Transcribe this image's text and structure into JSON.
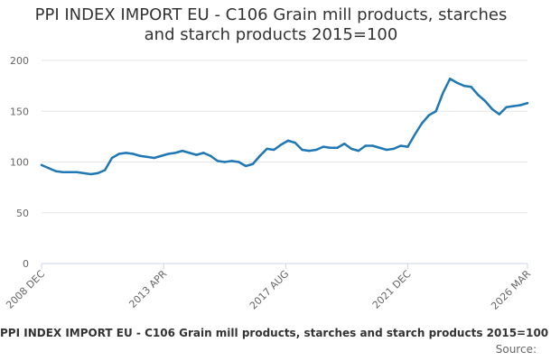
{
  "title_lines": [
    "PPI INDEX IMPORT EU - C106 Grain mill products, starches",
    "and starch products 2015=100"
  ],
  "footer": {
    "title": "PPI INDEX IMPORT EU - C106 Grain mill products, starches and starch products 2015=100",
    "source": "Source:"
  },
  "colors": {
    "line": "#1f78b4",
    "grid": "#e6e6e6",
    "axis": "#ccd6eb"
  },
  "chart_data": {
    "type": "line",
    "title": "PPI INDEX IMPORT EU - C106 Grain mill products, starches and starch products 2015=100",
    "xlabel": "",
    "ylabel": "",
    "ylim": [
      0,
      200
    ],
    "yticks": [
      0,
      50,
      100,
      150,
      200
    ],
    "xticks": [
      "2008 DEC",
      "2013 APR",
      "2017 AUG",
      "2021 DEC",
      "2026 MAR"
    ],
    "grid": true,
    "legend": "none",
    "x": [
      "2008-12",
      "2009-03",
      "2009-06",
      "2009-09",
      "2009-12",
      "2010-03",
      "2010-06",
      "2010-09",
      "2010-12",
      "2011-03",
      "2011-06",
      "2011-09",
      "2011-12",
      "2012-03",
      "2012-06",
      "2012-09",
      "2012-12",
      "2013-03",
      "2013-06",
      "2013-09",
      "2013-12",
      "2014-03",
      "2014-06",
      "2014-09",
      "2014-12",
      "2015-03",
      "2015-06",
      "2015-09",
      "2015-12",
      "2016-03",
      "2016-06",
      "2016-09",
      "2016-12",
      "2017-03",
      "2017-06",
      "2017-09",
      "2017-12",
      "2018-03",
      "2018-06",
      "2018-09",
      "2018-12",
      "2019-03",
      "2019-06",
      "2019-09",
      "2019-12",
      "2020-03",
      "2020-06",
      "2020-09",
      "2020-12",
      "2021-03",
      "2021-06",
      "2021-09",
      "2021-12",
      "2022-03",
      "2022-06",
      "2022-09",
      "2022-12",
      "2023-03",
      "2023-06",
      "2023-09",
      "2023-12",
      "2024-03",
      "2024-06",
      "2024-09",
      "2024-12",
      "2025-03",
      "2025-06",
      "2025-09",
      "2025-12",
      "2026-03"
    ],
    "series": [
      {
        "values": [
          97,
          94,
          91,
          90,
          90,
          90,
          89,
          88,
          89,
          92,
          104,
          108,
          109,
          108,
          106,
          105,
          104,
          106,
          108,
          109,
          111,
          109,
          107,
          109,
          106,
          101,
          100,
          101,
          100,
          96,
          98,
          106,
          113,
          112,
          117,
          121,
          119,
          112,
          111,
          112,
          115,
          114,
          114,
          118,
          113,
          111,
          116,
          116,
          114,
          112,
          113,
          116,
          115,
          127,
          138,
          146,
          150,
          168,
          182,
          178,
          175,
          174,
          166,
          160,
          152,
          147,
          154,
          155,
          156,
          158
        ]
      }
    ]
  }
}
